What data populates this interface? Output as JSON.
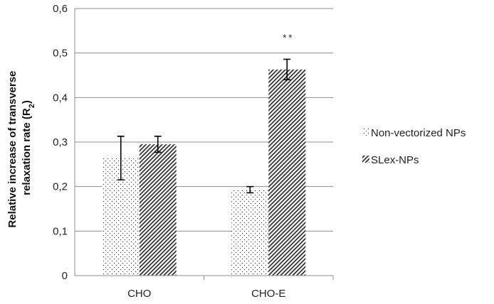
{
  "chart_data": {
    "type": "bar",
    "categories": [
      "CHO",
      "CHO-E"
    ],
    "series": [
      {
        "name": "Non-vectorized NPs",
        "values": [
          0.264,
          0.193
        ],
        "errors": [
          0.049,
          0.007
        ],
        "pattern": "dots"
      },
      {
        "name": "SLex-NPs",
        "values": [
          0.295,
          0.463
        ],
        "errors": [
          0.018,
          0.023
        ],
        "pattern": "diagonal-hatch"
      }
    ],
    "ylabel_line1": "Relative increase of transverse",
    "ylabel_line2": "relaxation rate (R",
    "ylabel_sub": "2",
    "ylabel_close": ")",
    "ylim": [
      0,
      0.6
    ],
    "yticks": [
      "0",
      "0,1",
      "0,2",
      "0,3",
      "0,4",
      "0,5",
      "0,6"
    ],
    "grid": true,
    "legend_position": "right",
    "annotation": "**",
    "annotation_category": "CHO-E",
    "annotation_series": "SLex-NPs"
  }
}
